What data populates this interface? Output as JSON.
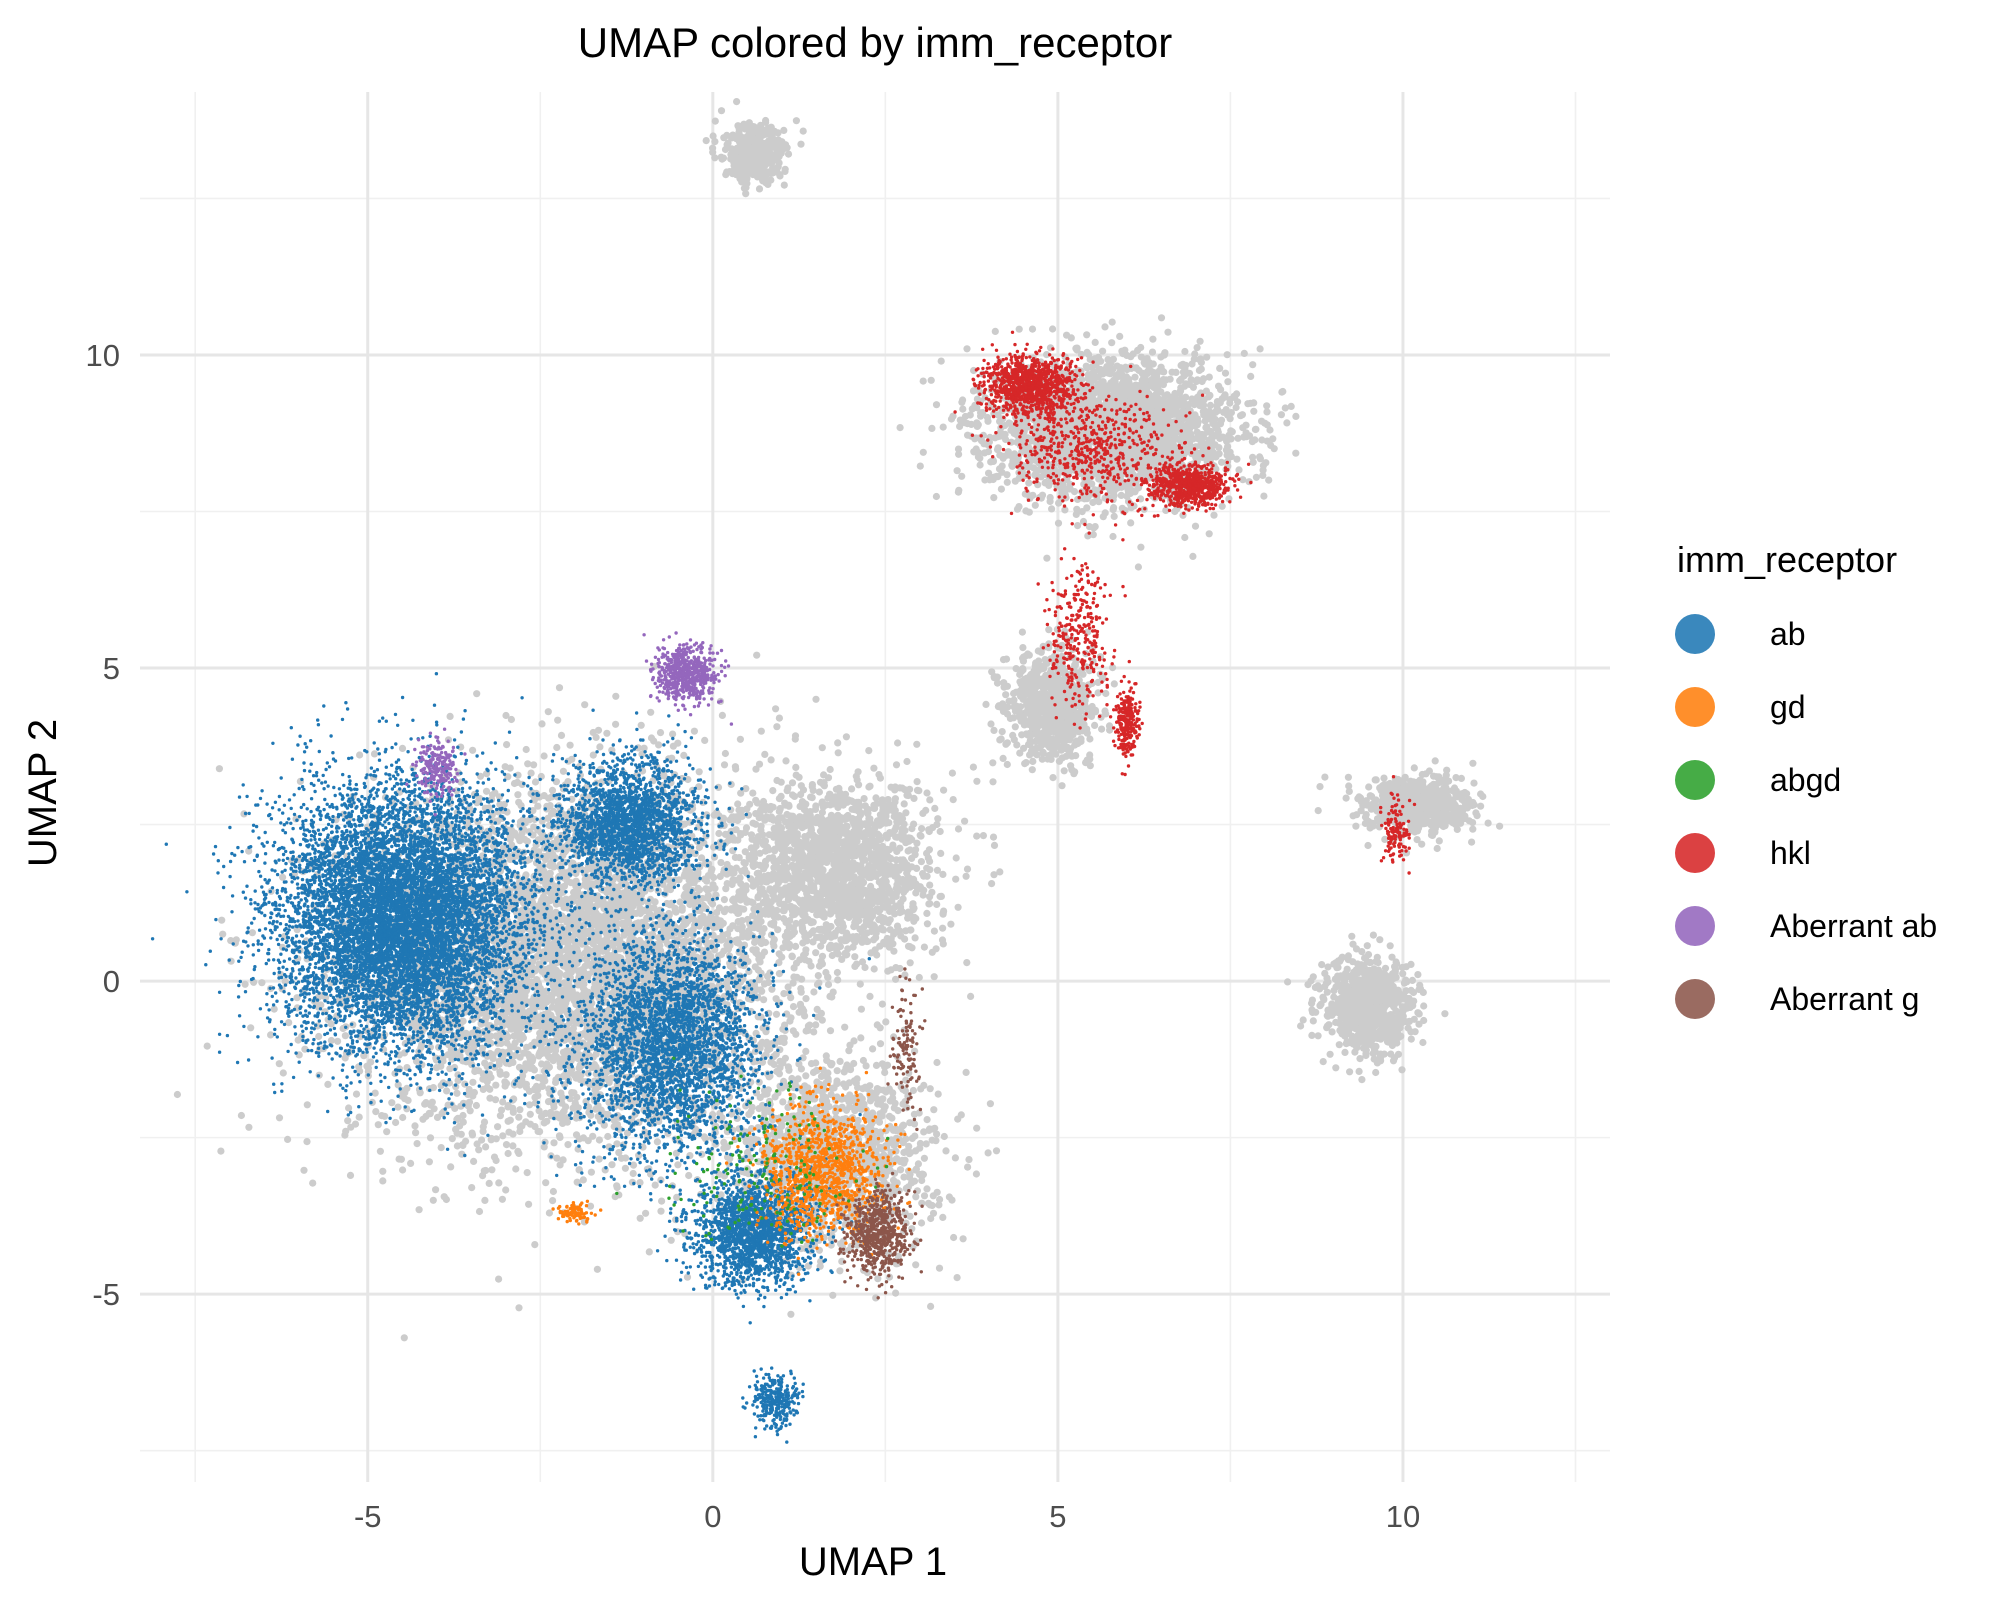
{
  "chart_data": {
    "type": "scatter",
    "title": "UMAP colored by imm_receptor",
    "xlabel": "UMAP 1",
    "ylabel": "UMAP 2",
    "xlim": [
      -8.3,
      13.0
    ],
    "ylim": [
      -8.0,
      14.2
    ],
    "x_ticks": [
      -5,
      0,
      5,
      10
    ],
    "x_tick_labels": [
      "-5",
      "0",
      "5",
      "10"
    ],
    "y_ticks": [
      -5,
      0,
      5,
      10
    ],
    "y_tick_labels": [
      "-5",
      "0",
      "5",
      "10"
    ],
    "grid": true,
    "legend_position": "right",
    "legend_title": "imm_receptor",
    "background_color": "#cccccc",
    "series": [
      {
        "name": "ab",
        "color": "#1f77b4"
      },
      {
        "name": "gd",
        "color": "#ff7f0e"
      },
      {
        "name": "abgd",
        "color": "#2ca02c"
      },
      {
        "name": "hkl",
        "color": "#d62728"
      },
      {
        "name": "Aberrant ab",
        "color": "#9467bd"
      },
      {
        "name": "Aberrant g",
        "color": "#8c564b"
      }
    ],
    "clusters": [
      {
        "series": null,
        "cx": -2.0,
        "cy": 0.3,
        "sx": 2.9,
        "sy": 2.6,
        "n": 5200
      },
      {
        "series": null,
        "cx": 1.8,
        "cy": 1.8,
        "sx": 1.3,
        "sy": 1.3,
        "n": 1600
      },
      {
        "series": null,
        "cx": 1.8,
        "cy": -2.8,
        "sx": 1.3,
        "sy": 1.4,
        "n": 1200
      },
      {
        "series": null,
        "cx": 0.6,
        "cy": 13.2,
        "sx": 0.4,
        "sy": 0.4,
        "n": 400
      },
      {
        "series": null,
        "cx": 5.8,
        "cy": 8.8,
        "sx": 1.6,
        "sy": 1.0,
        "n": 2600
      },
      {
        "series": null,
        "cx": 4.9,
        "cy": 4.4,
        "sx": 0.6,
        "sy": 0.8,
        "n": 700
      },
      {
        "series": null,
        "cx": 10.2,
        "cy": 2.8,
        "sx": 0.7,
        "sy": 0.4,
        "n": 700
      },
      {
        "series": null,
        "cx": 9.5,
        "cy": -0.4,
        "sx": 0.6,
        "sy": 0.7,
        "n": 800
      },
      {
        "series": "ab",
        "cx": -4.5,
        "cy": 1.0,
        "sx": 1.6,
        "sy": 1.9,
        "n": 9000
      },
      {
        "series": "ab",
        "cx": -1.2,
        "cy": 2.5,
        "sx": 0.9,
        "sy": 0.9,
        "n": 2200
      },
      {
        "series": "ab",
        "cx": -0.6,
        "cy": -1.0,
        "sx": 1.2,
        "sy": 1.6,
        "n": 3200
      },
      {
        "series": "ab",
        "cx": 0.6,
        "cy": -4.0,
        "sx": 0.8,
        "sy": 0.8,
        "n": 1800
      },
      {
        "series": "ab",
        "cx": 0.9,
        "cy": -6.7,
        "sx": 0.3,
        "sy": 0.4,
        "n": 300
      },
      {
        "series": "gd",
        "cx": 1.6,
        "cy": -3.0,
        "sx": 0.8,
        "sy": 0.9,
        "n": 1100
      },
      {
        "series": "gd",
        "cx": -2.0,
        "cy": -3.7,
        "sx": 0.25,
        "sy": 0.15,
        "n": 80
      },
      {
        "series": "abgd",
        "cx": 0.8,
        "cy": -3.0,
        "sx": 1.2,
        "sy": 1.2,
        "n": 180
      },
      {
        "series": "Aberrant g",
        "cx": 2.4,
        "cy": -4.0,
        "sx": 0.4,
        "sy": 0.6,
        "n": 600
      },
      {
        "series": "Aberrant g",
        "cx": 2.8,
        "cy": -1.0,
        "sx": 0.2,
        "sy": 0.9,
        "n": 120
      },
      {
        "series": "Aberrant ab",
        "cx": -0.4,
        "cy": 4.9,
        "sx": 0.4,
        "sy": 0.4,
        "n": 600
      },
      {
        "series": "Aberrant ab",
        "cx": -4.0,
        "cy": 3.4,
        "sx": 0.3,
        "sy": 0.4,
        "n": 200
      },
      {
        "series": "hkl",
        "cx": 4.6,
        "cy": 9.5,
        "sx": 0.6,
        "sy": 0.4,
        "n": 1000
      },
      {
        "series": "hkl",
        "cx": 6.9,
        "cy": 7.9,
        "sx": 0.5,
        "sy": 0.3,
        "n": 700
      },
      {
        "series": "hkl",
        "cx": 5.5,
        "cy": 8.5,
        "sx": 1.2,
        "sy": 0.8,
        "n": 600
      },
      {
        "series": "hkl",
        "cx": 5.3,
        "cy": 5.5,
        "sx": 0.4,
        "sy": 1.2,
        "n": 300
      },
      {
        "series": "hkl",
        "cx": 6.0,
        "cy": 4.1,
        "sx": 0.15,
        "sy": 0.5,
        "n": 250
      },
      {
        "series": "hkl",
        "cx": 9.9,
        "cy": 2.4,
        "sx": 0.2,
        "sy": 0.5,
        "n": 120
      }
    ]
  }
}
